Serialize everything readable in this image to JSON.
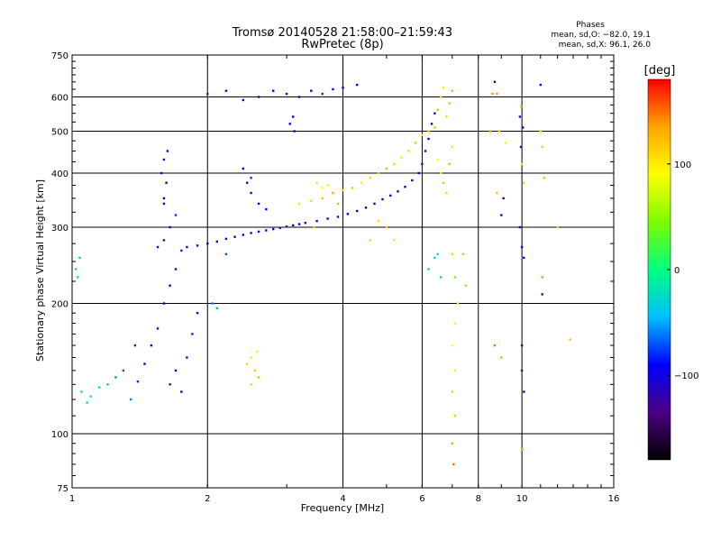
{
  "chart_data": {
    "type": "scatter",
    "title": "Tromsø 20140528 21:58:00–21:59:43",
    "subtitle": "RwPretec (8p)",
    "xlabel": "Frequency [MHz]",
    "ylabel": "Stationary phase Virtual Height [km]",
    "x_scale": "log",
    "y_scale": "log",
    "xlim": [
      1,
      16
    ],
    "ylim": [
      75,
      750
    ],
    "x_ticks": [
      1,
      2,
      4,
      6,
      8,
      10,
      16
    ],
    "x_tick_labels": [
      "1",
      "2",
      "4",
      "6",
      "8",
      "10",
      "16"
    ],
    "y_ticks": [
      75,
      100,
      200,
      300,
      400,
      500,
      600,
      750
    ],
    "y_tick_labels": [
      "75",
      "100",
      "200",
      "300",
      "400",
      "500",
      "600",
      "750"
    ],
    "grid": true,
    "info": {
      "heading": "Phases",
      "line_o": "mean, sd,O: −82.0, 19.1",
      "line_x": "mean, sd,X:  96.1, 26.0"
    },
    "colorbar": {
      "label": "[deg]",
      "range": [
        -180,
        180
      ],
      "ticks": [
        100,
        0,
        -100
      ],
      "tick_labels": [
        "100",
        "0",
        "−100"
      ],
      "colormap": "rainbow",
      "colors": [
        "#000000",
        "#4b0082",
        "#0000ff",
        "#00bfff",
        "#00ff7f",
        "#7cfc00",
        "#ffff00",
        "#ffa500",
        "#ff0000"
      ]
    },
    "series": [
      {
        "points": [
          [
            1.02,
            240,
            -30
          ],
          [
            1.04,
            255,
            -40
          ],
          [
            1.03,
            230,
            -20
          ],
          [
            1.05,
            125,
            -20
          ],
          [
            1.1,
            122,
            -10
          ],
          [
            1.15,
            128,
            -30
          ],
          [
            1.2,
            130,
            -40
          ],
          [
            1.08,
            118,
            -20
          ],
          [
            1.25,
            135,
            -60
          ],
          [
            1.3,
            140,
            -70
          ],
          [
            1.35,
            120,
            -60
          ],
          [
            1.4,
            132,
            -80
          ],
          [
            1.45,
            145,
            -90
          ],
          [
            1.38,
            160,
            -80
          ],
          [
            1.5,
            160,
            -100
          ],
          [
            1.55,
            175,
            -110
          ],
          [
            1.6,
            200,
            -100
          ],
          [
            1.65,
            220,
            -90
          ],
          [
            1.7,
            240,
            -100
          ],
          [
            1.75,
            265,
            -80
          ],
          [
            1.55,
            270,
            -90
          ],
          [
            1.6,
            280,
            -100
          ],
          [
            1.65,
            300,
            -110
          ],
          [
            1.7,
            320,
            -80
          ],
          [
            1.6,
            340,
            -100
          ],
          [
            1.62,
            380,
            -110
          ],
          [
            1.58,
            400,
            -100
          ],
          [
            1.6,
            430,
            -110
          ],
          [
            1.63,
            450,
            -100
          ],
          [
            1.6,
            350,
            -90
          ],
          [
            1.65,
            130,
            -110
          ],
          [
            1.7,
            140,
            -100
          ],
          [
            1.75,
            125,
            -110
          ],
          [
            1.8,
            150,
            -100
          ],
          [
            1.85,
            170,
            -80
          ],
          [
            1.9,
            190,
            -90
          ],
          [
            1.8,
            270,
            -100
          ],
          [
            1.9,
            272,
            -100
          ],
          [
            2.0,
            275,
            -90
          ],
          [
            2.1,
            278,
            -100
          ],
          [
            2.2,
            282,
            -90
          ],
          [
            2.3,
            285,
            -100
          ],
          [
            2.4,
            288,
            -90
          ],
          [
            2.5,
            291,
            -100
          ],
          [
            2.6,
            293,
            -110
          ],
          [
            2.7,
            295,
            -100
          ],
          [
            2.8,
            297,
            -110
          ],
          [
            2.9,
            299,
            -100
          ],
          [
            3.0,
            301,
            -110
          ],
          [
            3.1,
            303,
            -100
          ],
          [
            3.2,
            305,
            -90
          ],
          [
            3.3,
            307,
            -110
          ],
          [
            3.5,
            310,
            -100
          ],
          [
            3.7,
            314,
            -100
          ],
          [
            3.9,
            317,
            -110
          ],
          [
            4.1,
            322,
            -100
          ],
          [
            4.3,
            327,
            -90
          ],
          [
            4.5,
            333,
            -100
          ],
          [
            4.7,
            340,
            -110
          ],
          [
            4.9,
            348,
            -100
          ],
          [
            5.1,
            355,
            -90
          ],
          [
            5.3,
            363,
            -100
          ],
          [
            5.5,
            372,
            -110
          ],
          [
            5.7,
            385,
            -100
          ],
          [
            5.9,
            400,
            -90
          ],
          [
            6.0,
            420,
            -100
          ],
          [
            6.1,
            450,
            -110
          ],
          [
            6.2,
            480,
            -100
          ],
          [
            6.3,
            520,
            -110
          ],
          [
            6.4,
            550,
            -100
          ],
          [
            2.0,
            610,
            -80
          ],
          [
            2.2,
            620,
            -90
          ],
          [
            2.4,
            590,
            -100
          ],
          [
            2.6,
            600,
            -100
          ],
          [
            2.8,
            620,
            -90
          ],
          [
            3.0,
            610,
            -110
          ],
          [
            3.2,
            600,
            -100
          ],
          [
            3.4,
            620,
            -90
          ],
          [
            3.6,
            610,
            -80
          ],
          [
            3.8,
            625,
            -100
          ],
          [
            4.0,
            630,
            -90
          ],
          [
            4.3,
            640,
            -100
          ],
          [
            3.05,
            520,
            -100
          ],
          [
            3.1,
            540,
            -90
          ],
          [
            3.12,
            500,
            -110
          ],
          [
            2.4,
            410,
            -90
          ],
          [
            2.45,
            380,
            -100
          ],
          [
            2.5,
            360,
            -110
          ],
          [
            2.6,
            340,
            -100
          ],
          [
            2.7,
            330,
            -90
          ],
          [
            2.5,
            390,
            -80
          ],
          [
            2.05,
            200,
            -60
          ],
          [
            2.1,
            195,
            -50
          ],
          [
            2.2,
            260,
            -70
          ],
          [
            6.2,
            240,
            -40
          ],
          [
            6.4,
            255,
            -30
          ],
          [
            6.5,
            260,
            -20
          ],
          [
            6.6,
            230,
            -30
          ],
          [
            10.0,
            160,
            -120
          ],
          [
            10.1,
            125,
            -110
          ],
          [
            10.0,
            140,
            -130
          ],
          [
            9.9,
            300,
            -110
          ],
          [
            10.0,
            270,
            -100
          ],
          [
            10.1,
            255,
            -100
          ],
          [
            9.95,
            460,
            -110
          ],
          [
            10.05,
            510,
            -100
          ],
          [
            9.9,
            540,
            -110
          ],
          [
            9.0,
            320,
            -100
          ],
          [
            9.1,
            350,
            -110
          ],
          [
            11.0,
            640,
            -110
          ],
          [
            11.1,
            210,
            -120
          ],
          [
            8.7,
            650,
            -90
          ]
        ]
      },
      {
        "points": [
          [
            3.2,
            340,
            100
          ],
          [
            3.4,
            345,
            110
          ],
          [
            3.6,
            350,
            120
          ],
          [
            3.8,
            360,
            130
          ],
          [
            4.0,
            365,
            110
          ],
          [
            4.2,
            370,
            120
          ],
          [
            4.4,
            380,
            100
          ],
          [
            4.6,
            390,
            110
          ],
          [
            4.8,
            400,
            120
          ],
          [
            5.0,
            410,
            130
          ],
          [
            5.2,
            420,
            110
          ],
          [
            5.4,
            435,
            100
          ],
          [
            5.6,
            450,
            110
          ],
          [
            5.8,
            470,
            120
          ],
          [
            6.0,
            490,
            100
          ],
          [
            6.2,
            500,
            110
          ],
          [
            6.4,
            510,
            120
          ],
          [
            6.5,
            560,
            130
          ],
          [
            6.6,
            600,
            110
          ],
          [
            6.7,
            630,
            100
          ],
          [
            6.5,
            430,
            90
          ],
          [
            6.6,
            400,
            100
          ],
          [
            6.7,
            380,
            120
          ],
          [
            6.8,
            360,
            110
          ],
          [
            6.9,
            420,
            130
          ],
          [
            7.0,
            460,
            100
          ],
          [
            6.8,
            540,
            110
          ],
          [
            6.9,
            580,
            120
          ],
          [
            7.0,
            620,
            130
          ],
          [
            2.45,
            145,
            110
          ],
          [
            2.5,
            150,
            100
          ],
          [
            2.55,
            140,
            120
          ],
          [
            2.6,
            135,
            130
          ],
          [
            2.5,
            130,
            110
          ],
          [
            2.58,
            155,
            90
          ],
          [
            3.5,
            380,
            80
          ],
          [
            3.6,
            370,
            90
          ],
          [
            3.7,
            375,
            100
          ],
          [
            3.45,
            300,
            120
          ],
          [
            3.9,
            340,
            130
          ],
          [
            4.8,
            310,
            110
          ],
          [
            5.0,
            300,
            120
          ],
          [
            5.2,
            280,
            100
          ],
          [
            4.6,
            280,
            110
          ],
          [
            7.0,
            260,
            60
          ],
          [
            7.1,
            230,
            40
          ],
          [
            7.2,
            200,
            70
          ],
          [
            7.1,
            180,
            80
          ],
          [
            7.0,
            160,
            90
          ],
          [
            7.1,
            140,
            100
          ],
          [
            7.0,
            125,
            110
          ],
          [
            7.1,
            110,
            120
          ],
          [
            7.0,
            95,
            130
          ],
          [
            7.05,
            85,
            150
          ],
          [
            7.4,
            260,
            40
          ],
          [
            7.5,
            220,
            50
          ],
          [
            8.5,
            500,
            130
          ],
          [
            8.6,
            610,
            140
          ],
          [
            8.9,
            500,
            110
          ],
          [
            8.8,
            360,
            120
          ],
          [
            8.7,
            160,
            150
          ],
          [
            9.0,
            150,
            130
          ],
          [
            9.95,
            570,
            120
          ],
          [
            10.0,
            420,
            100
          ],
          [
            10.1,
            380,
            110
          ],
          [
            10.05,
            92,
            120
          ],
          [
            11.0,
            500,
            110
          ],
          [
            11.1,
            460,
            120
          ],
          [
            11.2,
            390,
            130
          ],
          [
            11.1,
            230,
            140
          ],
          [
            12.8,
            165,
            120
          ],
          [
            12.0,
            300,
            110
          ],
          [
            9.2,
            470,
            100
          ],
          [
            8.8,
            610,
            140
          ]
        ]
      }
    ]
  }
}
